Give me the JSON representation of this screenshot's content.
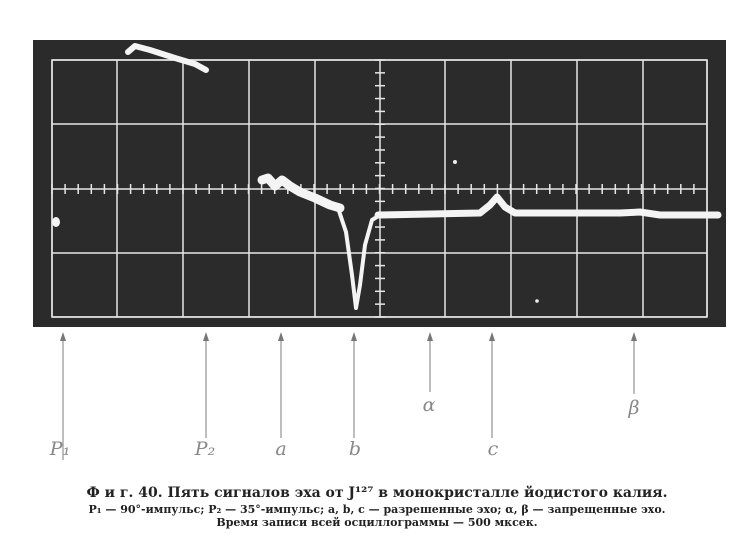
{
  "figure": {
    "labels": {
      "p1": "P₁",
      "p2": "P₂",
      "a": "a",
      "b": "b",
      "alpha": "α",
      "c": "c",
      "beta": "β"
    },
    "caption": {
      "line1": "Ф и г. 40. Пять сигналов эха от J¹²⁷ в монокристалле йодистого калия.",
      "line2": "P₁ — 90°-импульс; P₂ — 35°-импульс; a, b, c — разрешенные эхо; α, β — запрещенные эхо.",
      "line3": "Время записи всей осциллограммы — 500 мксек."
    },
    "colors": {
      "screen": "#2a2a2a",
      "grid": "#e8e8e8",
      "trace": "#f2f2f2",
      "arrow": "#999999"
    }
  }
}
